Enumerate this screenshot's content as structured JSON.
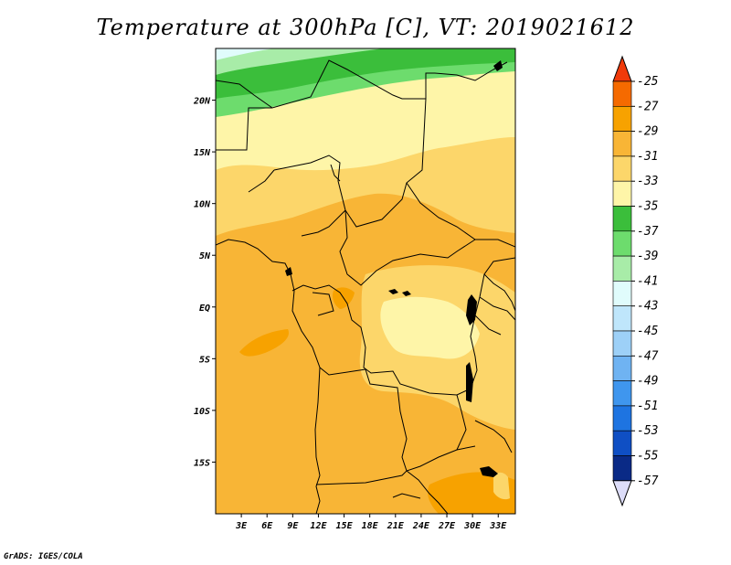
{
  "title": "Temperature at 300hPa [C], VT: 2019021612",
  "credit": "GrADS: IGES/COLA",
  "map": {
    "lon_range": [
      0,
      35
    ],
    "lat_range": [
      -20,
      25
    ],
    "lon_ticks": [
      "3E",
      "6E",
      "9E",
      "12E",
      "15E",
      "18E",
      "21E",
      "24E",
      "27E",
      "30E",
      "33E"
    ],
    "lat_ticks": [
      "20N",
      "15N",
      "10N",
      "5N",
      "EQ",
      "5S",
      "10S",
      "15S"
    ]
  },
  "colorbar": {
    "labels": [
      "-25",
      "-27",
      "-29",
      "-31",
      "-33",
      "-35",
      "-37",
      "-39",
      "-41",
      "-43",
      "-45",
      "-47",
      "-49",
      "-51",
      "-53",
      "-55",
      "-57"
    ],
    "colors": [
      "#f03a0a",
      "#f56a00",
      "#f7a200",
      "#f8b536",
      "#fcd66a",
      "#fef5a8",
      "#3bbe3b",
      "#6ddc6d",
      "#a8eca8",
      "#e0fcfc",
      "#bfe6fb",
      "#9dd0f7",
      "#6fb3f2",
      "#3f96ee",
      "#1e74e1",
      "#0f4fc4",
      "#0a2a86",
      "#02066a",
      "#dcdcf8"
    ]
  }
}
